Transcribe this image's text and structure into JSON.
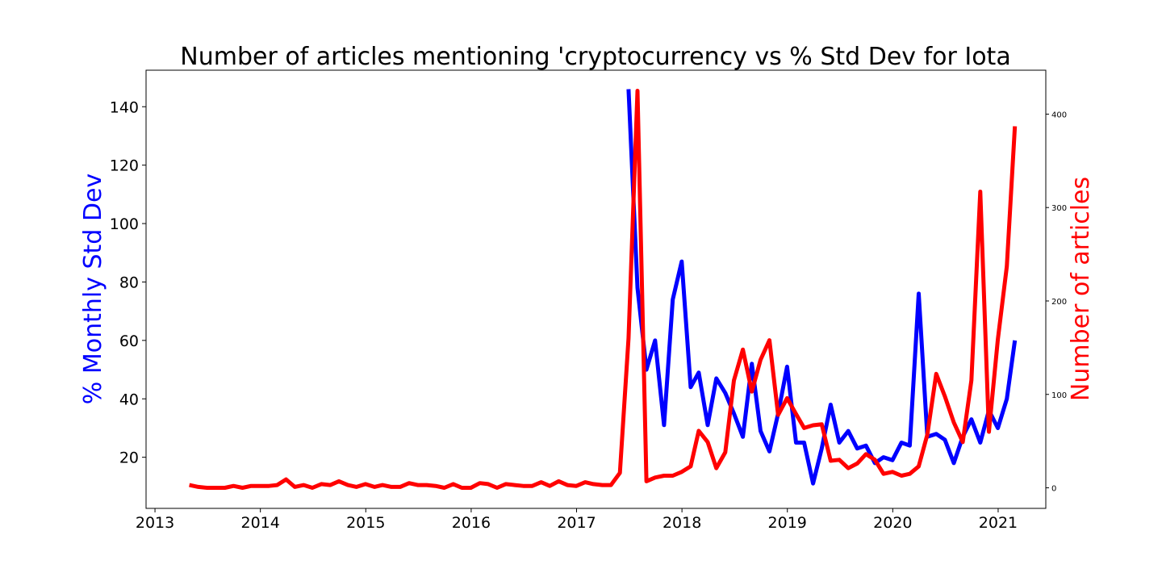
{
  "chart_data": {
    "type": "line",
    "title": "Number of articles mentioning 'cryptocurrency vs % Std Dev for Iota",
    "xlabel": "",
    "ylabel_left": "% Monthly Std Dev",
    "ylabel_right": "Number of articles",
    "xlim": [
      "2012-12-01",
      "2021-06-15"
    ],
    "ylim_left": [
      2.5,
      152.5
    ],
    "ylim_right": [
      -22,
      447
    ],
    "x_ticks": [
      "2013",
      "2014",
      "2015",
      "2016",
      "2017",
      "2018",
      "2019",
      "2020",
      "2021"
    ],
    "y_ticks_left": [
      20,
      40,
      60,
      80,
      100,
      120,
      140
    ],
    "y_ticks_right": [
      0,
      100,
      200,
      300,
      400
    ],
    "grid": false,
    "colors": {
      "left_series": "#0000ff",
      "right_series": "#ff0000",
      "axes": "#000000"
    },
    "series": [
      {
        "axis": "left",
        "x": [
          "2017-06-30",
          "2017-07-31",
          "2017-08-31",
          "2017-09-30",
          "2017-10-31",
          "2017-11-30",
          "2017-12-31",
          "2018-01-31",
          "2018-02-28",
          "2018-03-31",
          "2018-04-30",
          "2018-05-31",
          "2018-06-30",
          "2018-07-31",
          "2018-08-31",
          "2018-09-30",
          "2018-10-31",
          "2018-11-30",
          "2018-12-31",
          "2019-01-31",
          "2019-02-28",
          "2019-03-31",
          "2019-04-30",
          "2019-05-31",
          "2019-06-30",
          "2019-07-31",
          "2019-08-31",
          "2019-09-30",
          "2019-10-31",
          "2019-11-30",
          "2019-12-31",
          "2020-01-31",
          "2020-02-29",
          "2020-03-31",
          "2020-04-30",
          "2020-05-31",
          "2020-06-30",
          "2020-07-31",
          "2020-08-31",
          "2020-09-30",
          "2020-10-31",
          "2020-11-30",
          "2020-12-31",
          "2021-01-31",
          "2021-02-28"
        ],
        "values": [
          146,
          78,
          50,
          60,
          31,
          74,
          87,
          44,
          49,
          31,
          47,
          42,
          35,
          27,
          52,
          29,
          22,
          35,
          51,
          25,
          25,
          11,
          23,
          38,
          25,
          29,
          23,
          24,
          18,
          20,
          19,
          25,
          24,
          76,
          27,
          28,
          26,
          18,
          27,
          33,
          25,
          36,
          30,
          40,
          60
        ]
      },
      {
        "axis": "right",
        "x": [
          "2013-04-30",
          "2013-05-31",
          "2013-06-30",
          "2013-07-31",
          "2013-08-31",
          "2013-09-30",
          "2013-10-31",
          "2013-11-30",
          "2013-12-31",
          "2014-01-31",
          "2014-02-28",
          "2014-03-31",
          "2014-04-30",
          "2014-05-31",
          "2014-06-30",
          "2014-07-31",
          "2014-08-31",
          "2014-09-30",
          "2014-10-31",
          "2014-11-30",
          "2014-12-31",
          "2015-01-31",
          "2015-02-28",
          "2015-03-31",
          "2015-04-30",
          "2015-05-31",
          "2015-06-30",
          "2015-07-31",
          "2015-08-31",
          "2015-09-30",
          "2015-10-31",
          "2015-11-30",
          "2015-12-31",
          "2016-01-31",
          "2016-02-29",
          "2016-03-31",
          "2016-04-30",
          "2016-05-31",
          "2016-06-30",
          "2016-07-31",
          "2016-08-31",
          "2016-09-30",
          "2016-10-31",
          "2016-11-30",
          "2016-12-31",
          "2017-01-31",
          "2017-02-28",
          "2017-03-31",
          "2017-04-30",
          "2017-05-31",
          "2017-06-30",
          "2017-07-31",
          "2017-08-31",
          "2017-09-30",
          "2017-10-31",
          "2017-11-30",
          "2017-12-31",
          "2018-01-31",
          "2018-02-28",
          "2018-03-31",
          "2018-04-30",
          "2018-05-31",
          "2018-06-30",
          "2018-07-31",
          "2018-08-31",
          "2018-09-30",
          "2018-10-31",
          "2018-11-30",
          "2018-12-31",
          "2019-01-31",
          "2019-02-28",
          "2019-03-31",
          "2019-04-30",
          "2019-05-31",
          "2019-06-30",
          "2019-07-31",
          "2019-08-31",
          "2019-09-30",
          "2019-10-31",
          "2019-11-30",
          "2019-12-31",
          "2020-01-31",
          "2020-02-29",
          "2020-03-31",
          "2020-04-30",
          "2020-05-31",
          "2020-06-30",
          "2020-07-31",
          "2020-08-31",
          "2020-09-30",
          "2020-10-31",
          "2020-11-30",
          "2020-12-31",
          "2021-01-31",
          "2021-02-28"
        ],
        "values": [
          3,
          1,
          0,
          0,
          0,
          2,
          0,
          2,
          2,
          2,
          3,
          9,
          1,
          3,
          0,
          4,
          3,
          7,
          3,
          1,
          4,
          1,
          3,
          1,
          1,
          5,
          3,
          3,
          2,
          0,
          4,
          0,
          0,
          5,
          4,
          0,
          4,
          3,
          2,
          2,
          6,
          2,
          7,
          3,
          2,
          6,
          4,
          3,
          3,
          16,
          160,
          425,
          7,
          11,
          13,
          13,
          17,
          23,
          61,
          49,
          21,
          38,
          115,
          148,
          103,
          137,
          158,
          78,
          96,
          79,
          64,
          67,
          68,
          29,
          30,
          21,
          26,
          36,
          30,
          15,
          17,
          13,
          15,
          23,
          57,
          122,
          98,
          70,
          49,
          115,
          317,
          60,
          159,
          237,
          387
        ]
      }
    ]
  }
}
